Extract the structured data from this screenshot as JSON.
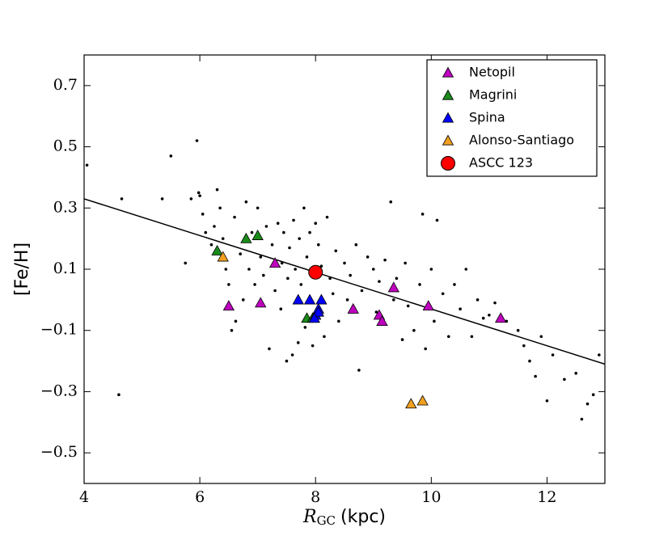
{
  "chart_data": {
    "type": "scatter",
    "xlabel": {
      "symbol": "R",
      "subscript": "GC",
      "unit": "(kpc)"
    },
    "ylabel": "[Fe/H]",
    "xlim": [
      4,
      13
    ],
    "xticks": [
      4,
      6,
      8,
      10,
      12
    ],
    "ylim": [
      -0.6,
      0.8
    ],
    "yticks": [
      {
        "value": -0.5,
        "label": "−0.5"
      },
      {
        "value": -0.3,
        "label": "−0.3"
      },
      {
        "value": -0.1,
        "label": "−0.1"
      },
      0.1,
      0.3,
      0.5,
      0.7
    ],
    "legend": "upper right",
    "fit": {
      "x": [
        4,
        13
      ],
      "y": [
        0.33,
        -0.21
      ],
      "color": "#000000"
    },
    "field": {
      "color": "#000000",
      "x": [
        4.05,
        4.6,
        4.65,
        5.35,
        5.5,
        5.75,
        5.85,
        5.95,
        5.98,
        6.0,
        6.05,
        6.1,
        6.2,
        6.25,
        6.3,
        6.35,
        6.4,
        6.45,
        6.5,
        6.55,
        6.6,
        6.62,
        6.7,
        6.75,
        6.8,
        6.85,
        6.9,
        6.95,
        7.0,
        7.05,
        7.1,
        7.15,
        7.2,
        7.25,
        7.3,
        7.35,
        7.4,
        7.42,
        7.45,
        7.5,
        7.52,
        7.55,
        7.6,
        7.62,
        7.65,
        7.7,
        7.72,
        7.75,
        7.8,
        7.82,
        7.85,
        7.9,
        7.95,
        8.0,
        8.05,
        8.1,
        8.15,
        8.2,
        8.25,
        8.3,
        8.35,
        8.4,
        8.5,
        8.55,
        8.6,
        8.7,
        8.75,
        8.8,
        8.9,
        9.0,
        9.05,
        9.1,
        9.2,
        9.3,
        9.35,
        9.4,
        9.5,
        9.55,
        9.6,
        9.7,
        9.8,
        9.85,
        9.9,
        10.0,
        10.05,
        10.1,
        10.2,
        10.3,
        10.4,
        10.5,
        10.6,
        10.7,
        10.8,
        10.9,
        11.0,
        11.1,
        11.3,
        11.5,
        11.6,
        11.7,
        11.8,
        11.9,
        12.0,
        12.1,
        12.3,
        12.5,
        12.6,
        12.7,
        12.8,
        12.9
      ],
      "y": [
        0.44,
        -0.31,
        0.33,
        0.33,
        0.47,
        0.12,
        0.33,
        0.52,
        0.35,
        0.34,
        0.28,
        0.22,
        0.18,
        0.24,
        0.36,
        0.3,
        0.2,
        0.1,
        0.05,
        -0.1,
        0.27,
        -0.07,
        0.15,
        0.0,
        0.32,
        0.1,
        0.22,
        0.05,
        0.3,
        0.14,
        0.08,
        0.24,
        -0.16,
        0.18,
        0.03,
        0.25,
        -0.03,
        0.12,
        0.22,
        -0.2,
        0.07,
        0.17,
        -0.18,
        0.26,
        0.1,
        -0.14,
        0.2,
        0.05,
        0.3,
        -0.09,
        0.14,
        0.22,
        -0.15,
        0.25,
        0.18,
        0.11,
        -0.12,
        0.27,
        0.07,
        0.02,
        0.16,
        -0.07,
        0.12,
        0.0,
        0.08,
        0.18,
        -0.23,
        0.03,
        0.14,
        0.1,
        -0.04,
        0.06,
        0.13,
        0.32,
        0.0,
        0.07,
        -0.13,
        0.12,
        -0.02,
        -0.1,
        0.05,
        0.28,
        -0.16,
        0.1,
        -0.07,
        0.26,
        0.02,
        -0.12,
        0.05,
        -0.03,
        0.1,
        -0.12,
        0.0,
        -0.06,
        -0.05,
        -0.01,
        -0.07,
        -0.1,
        -0.15,
        -0.2,
        -0.25,
        -0.12,
        -0.33,
        -0.18,
        -0.26,
        -0.24,
        -0.39,
        -0.34,
        -0.31,
        -0.18
      ]
    },
    "series": [
      {
        "name": "Netopil",
        "color": "#bf00bf",
        "marker": "triangle",
        "x": [
          6.5,
          7.05,
          7.3,
          8.65,
          9.1,
          9.15,
          9.35,
          9.95,
          11.2
        ],
        "values": [
          -0.02,
          -0.01,
          0.12,
          -0.03,
          -0.05,
          -0.07,
          0.04,
          -0.02,
          -0.06
        ]
      },
      {
        "name": "Magrini",
        "color": "#1a8a1a",
        "marker": "triangle",
        "x": [
          6.3,
          6.8,
          7.0,
          7.85,
          7.95
        ],
        "values": [
          0.16,
          0.2,
          0.21,
          -0.06,
          -0.06
        ]
      },
      {
        "name": "Spina",
        "color": "#0000ff",
        "marker": "triangle",
        "x": [
          7.7,
          7.9,
          8.0,
          8.05,
          8.05,
          8.1,
          7.98
        ],
        "values": [
          0.0,
          0.0,
          -0.05,
          -0.03,
          -0.04,
          0.0,
          -0.06
        ]
      },
      {
        "name": "Alonso-Santiago",
        "color": "#f0a020",
        "marker": "triangle",
        "x": [
          6.4,
          9.65,
          9.85
        ],
        "values": [
          0.14,
          -0.34,
          -0.33
        ]
      },
      {
        "name": "ASCC 123",
        "color": "#ff0000",
        "marker": "circle",
        "x": [
          8.0
        ],
        "values": [
          0.09
        ]
      }
    ]
  }
}
